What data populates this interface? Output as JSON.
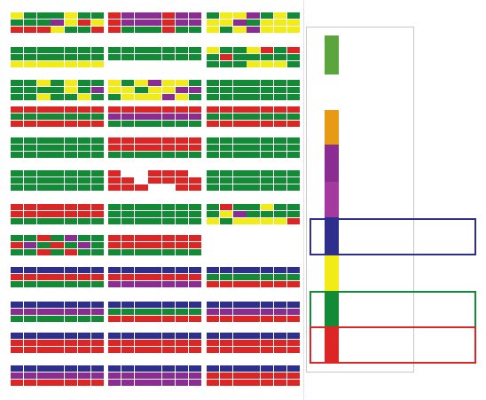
{
  "colors": {
    "green": "#138a36",
    "red": "#dc2626",
    "purple": "#8b2c92",
    "magenta": "#a43aa0",
    "navy": "#2e2f8c",
    "yellow": "#f1ec18",
    "orange": "#e79a13",
    "lightgreen": "#5aa63c",
    "white": "#ffffff"
  },
  "legend": {
    "swatches": [
      {
        "name": "light-green",
        "color": "lightgreen"
      },
      {
        "name": "orange",
        "color": "orange"
      },
      {
        "name": "purple",
        "color": "purple"
      },
      {
        "name": "magenta",
        "color": "magenta"
      },
      {
        "name": "navy",
        "color": "navy"
      },
      {
        "name": "yellow",
        "color": "yellow"
      },
      {
        "name": "green",
        "color": "green"
      },
      {
        "name": "red",
        "color": "red"
      }
    ],
    "highlighted": [
      "navy",
      "green",
      "red"
    ]
  },
  "rows": [
    {
      "blocks": [
        {
          "pattern": "mixed",
          "base": "green",
          "accents": [
            "red",
            "purple",
            "yellow"
          ]
        },
        {
          "pattern": "top-bottom",
          "top": "purple",
          "bottom": "green",
          "accents": [
            "red"
          ]
        },
        {
          "pattern": "mixed",
          "base": "yellow",
          "accents": [
            "green",
            "purple"
          ]
        }
      ]
    },
    {
      "blocks": [
        {
          "pattern": "bands",
          "bands": [
            "green",
            "green",
            "yellow"
          ]
        },
        {
          "pattern": "bands",
          "bands": [
            "green",
            "green",
            "white"
          ]
        },
        {
          "pattern": "mixed",
          "base": "green",
          "accents": [
            "yellow",
            "red",
            "purple"
          ]
        }
      ]
    },
    {
      "blocks": [
        {
          "pattern": "mixed",
          "base": "green",
          "accents": [
            "purple",
            "yellow"
          ]
        },
        {
          "pattern": "mixed",
          "base": "yellow",
          "accents": [
            "purple",
            "green"
          ]
        },
        {
          "pattern": "bands",
          "bands": [
            "green",
            "green",
            "green"
          ]
        }
      ]
    },
    {
      "blocks": [
        {
          "pattern": "bands",
          "bands": [
            "red",
            "green",
            "red"
          ]
        },
        {
          "pattern": "bands",
          "bands": [
            "red",
            "purple",
            "green"
          ]
        },
        {
          "pattern": "bands",
          "bands": [
            "red",
            "green",
            "red"
          ]
        }
      ]
    },
    {
      "blocks": [
        {
          "pattern": "bands",
          "bands": [
            "green",
            "green",
            "green"
          ]
        },
        {
          "pattern": "bands",
          "bands": [
            "red",
            "red",
            "green"
          ]
        },
        {
          "pattern": "bands",
          "bands": [
            "green",
            "green",
            "green"
          ]
        }
      ]
    },
    {
      "blocks": [
        {
          "pattern": "bands",
          "bands": [
            "green",
            "green",
            "green"
          ]
        },
        {
          "pattern": "mixed",
          "base": "red",
          "accents": [
            "white"
          ]
        },
        {
          "pattern": "bands",
          "bands": [
            "green",
            "green",
            "green"
          ]
        }
      ]
    },
    {
      "blocks": [
        {
          "pattern": "bands",
          "bands": [
            "red",
            "red",
            "green"
          ]
        },
        {
          "pattern": "bands",
          "bands": [
            "green",
            "green",
            "green"
          ]
        },
        {
          "pattern": "mixed",
          "base": "green",
          "accents": [
            "yellow",
            "purple",
            "red"
          ]
        }
      ]
    },
    {
      "blocks": [
        {
          "pattern": "mixed",
          "base": "green",
          "accents": [
            "purple",
            "red"
          ]
        },
        {
          "pattern": "bands",
          "bands": [
            "red",
            "red",
            "green"
          ]
        },
        {
          "pattern": "empty"
        }
      ]
    },
    {
      "blocks": [
        {
          "pattern": "bands",
          "bands": [
            "navy",
            "red",
            "green"
          ]
        },
        {
          "pattern": "bands",
          "bands": [
            "navy",
            "red",
            "purple"
          ]
        },
        {
          "pattern": "bands",
          "bands": [
            "navy",
            "green",
            "red"
          ]
        }
      ]
    },
    {
      "blocks": [
        {
          "pattern": "bands",
          "bands": [
            "navy",
            "purple",
            "green"
          ]
        },
        {
          "pattern": "bands",
          "bands": [
            "navy",
            "green",
            "red"
          ]
        },
        {
          "pattern": "bands",
          "bands": [
            "navy",
            "purple",
            "red"
          ]
        }
      ]
    },
    {
      "blocks": [
        {
          "pattern": "bands",
          "bands": [
            "navy",
            "red",
            "red"
          ]
        },
        {
          "pattern": "bands",
          "bands": [
            "navy",
            "red",
            "red"
          ]
        },
        {
          "pattern": "bands",
          "bands": [
            "navy",
            "red",
            "red"
          ]
        }
      ]
    },
    {
      "blocks": [
        {
          "pattern": "bands",
          "bands": [
            "navy",
            "purple",
            "red"
          ]
        },
        {
          "pattern": "bands",
          "bands": [
            "navy",
            "purple",
            "purple"
          ]
        },
        {
          "pattern": "bands",
          "bands": [
            "navy",
            "red",
            "red"
          ]
        }
      ]
    }
  ]
}
